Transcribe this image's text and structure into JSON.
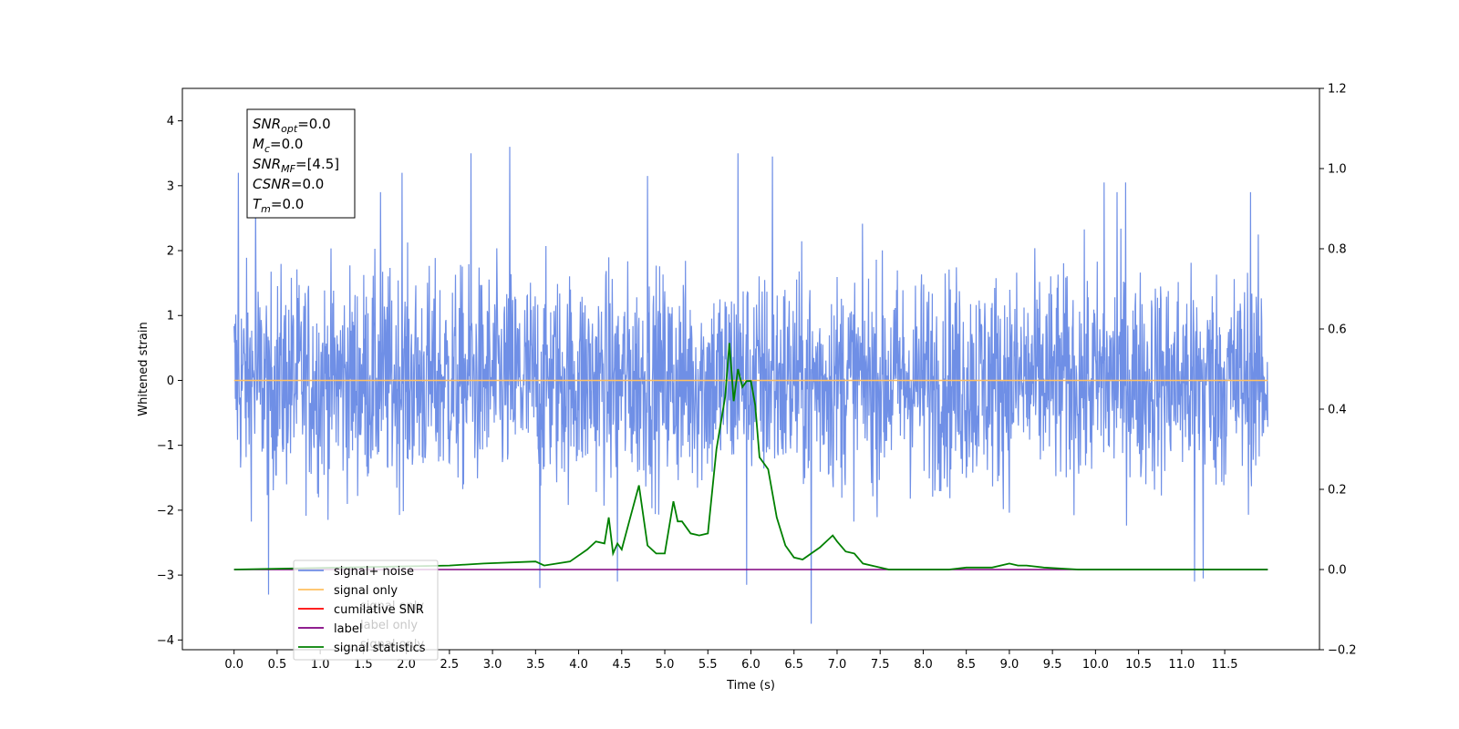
{
  "chart_data": {
    "type": "line",
    "xlabel": "Time (s)",
    "ylabel": "Whitened strain",
    "xlim": [
      -0.6,
      12.6
    ],
    "ylim": [
      -4.15,
      4.5
    ],
    "y2lim": [
      -0.2,
      1.2
    ],
    "x_ticks": [
      "0.0",
      "0.5",
      "1.0",
      "1.5",
      "2.0",
      "2.5",
      "3.0",
      "3.5",
      "4.0",
      "4.5",
      "5.0",
      "5.5",
      "6.0",
      "6.5",
      "7.0",
      "7.5",
      "8.0",
      "8.5",
      "9.0",
      "9.5",
      "10.0",
      "10.5",
      "11.0",
      "11.5"
    ],
    "y_ticks": [
      "−4",
      "−3",
      "−2",
      "−1",
      "0",
      "1",
      "2",
      "3",
      "4"
    ],
    "y2_ticks": [
      "−0.2",
      "0.0",
      "0.2",
      "0.4",
      "0.6",
      "0.8",
      "1.0",
      "1.2"
    ],
    "grid": false,
    "annotation": {
      "lines": [
        {
          "name": "SNR",
          "sub": "opt",
          "value": "=0.0"
        },
        {
          "name": "M",
          "sub": "c",
          "value": "=0.0"
        },
        {
          "name": "SNR",
          "sub": "MF",
          "value": "=[4.5]"
        },
        {
          "name": "CSNR",
          "sub": "",
          "value": "=0.0"
        },
        {
          "name": "T",
          "sub": "m",
          "value": "=0.0"
        }
      ]
    },
    "legend": {
      "placement": "lower-left",
      "entries": [
        {
          "label": "signal+ noise",
          "color": "#6f8fe6"
        },
        {
          "label": "signal only",
          "color": "#ffc060"
        },
        {
          "label": "cumilative SNR",
          "color": "#ff0000"
        },
        {
          "label": "label",
          "color": "#800080"
        },
        {
          "label": "signal statistics",
          "color": "#008000"
        }
      ],
      "hidden_text": [
        "signal only",
        "label only",
        "signal only"
      ]
    },
    "series": [
      {
        "name": "signal+ noise",
        "axis": "left",
        "kind": "noise",
        "t_range": [
          0.0,
          12.0
        ],
        "baseline": 0,
        "typical_range": [
          -2.7,
          2.7
        ],
        "peaks": [
          {
            "x": 0.05,
            "y": 3.2
          },
          {
            "x": 0.25,
            "y": 2.75
          },
          {
            "x": 0.4,
            "y": -3.3
          },
          {
            "x": 1.7,
            "y": 2.9
          },
          {
            "x": 1.95,
            "y": 3.2
          },
          {
            "x": 2.75,
            "y": 3.5
          },
          {
            "x": 3.2,
            "y": 3.6
          },
          {
            "x": 3.55,
            "y": -3.2
          },
          {
            "x": 4.45,
            "y": -3.1
          },
          {
            "x": 4.8,
            "y": 3.15
          },
          {
            "x": 5.85,
            "y": 3.5
          },
          {
            "x": 5.95,
            "y": -3.15
          },
          {
            "x": 6.25,
            "y": 3.45
          },
          {
            "x": 6.7,
            "y": -3.75
          },
          {
            "x": 10.1,
            "y": 3.05
          },
          {
            "x": 10.25,
            "y": 2.9
          },
          {
            "x": 10.35,
            "y": 3.05
          },
          {
            "x": 11.15,
            "y": -3.1
          },
          {
            "x": 11.25,
            "y": -3.05
          },
          {
            "x": 11.8,
            "y": 2.9
          }
        ]
      },
      {
        "name": "signal only",
        "axis": "left",
        "color": "#ffc060",
        "x": [
          0.0,
          12.0
        ],
        "y": [
          0.0,
          0.0
        ]
      },
      {
        "name": "label",
        "axis": "right",
        "color": "#800080",
        "x": [
          0.0,
          12.0
        ],
        "y": [
          0.0,
          0.0
        ]
      },
      {
        "name": "signal statistics",
        "axis": "right",
        "color": "#008000",
        "x": [
          0.0,
          2.5,
          2.9,
          3.5,
          3.6,
          3.9,
          4.1,
          4.2,
          4.3,
          4.35,
          4.4,
          4.45,
          4.5,
          4.6,
          4.7,
          4.8,
          4.9,
          5.0,
          5.1,
          5.15,
          5.2,
          5.3,
          5.4,
          5.5,
          5.6,
          5.7,
          5.75,
          5.8,
          5.85,
          5.9,
          5.95,
          6.0,
          6.05,
          6.1,
          6.2,
          6.3,
          6.4,
          6.5,
          6.6,
          6.7,
          6.8,
          6.9,
          6.95,
          7.0,
          7.1,
          7.2,
          7.3,
          7.4,
          7.6,
          7.8,
          8.0,
          8.3,
          8.5,
          8.8,
          9.0,
          9.1,
          9.2,
          9.4,
          9.8,
          12.0
        ],
        "y": [
          0.0,
          0.01,
          0.015,
          0.02,
          0.01,
          0.02,
          0.05,
          0.07,
          0.065,
          0.13,
          0.04,
          0.065,
          0.05,
          0.13,
          0.21,
          0.06,
          0.04,
          0.04,
          0.17,
          0.12,
          0.12,
          0.09,
          0.085,
          0.09,
          0.3,
          0.43,
          0.565,
          0.42,
          0.5,
          0.455,
          0.47,
          0.47,
          0.41,
          0.28,
          0.25,
          0.13,
          0.06,
          0.03,
          0.025,
          0.04,
          0.055,
          0.075,
          0.085,
          0.07,
          0.045,
          0.04,
          0.015,
          0.01,
          0.0,
          0.0,
          0.0,
          0.0,
          0.005,
          0.005,
          0.015,
          0.01,
          0.01,
          0.005,
          0.0,
          0.0
        ]
      }
    ]
  }
}
